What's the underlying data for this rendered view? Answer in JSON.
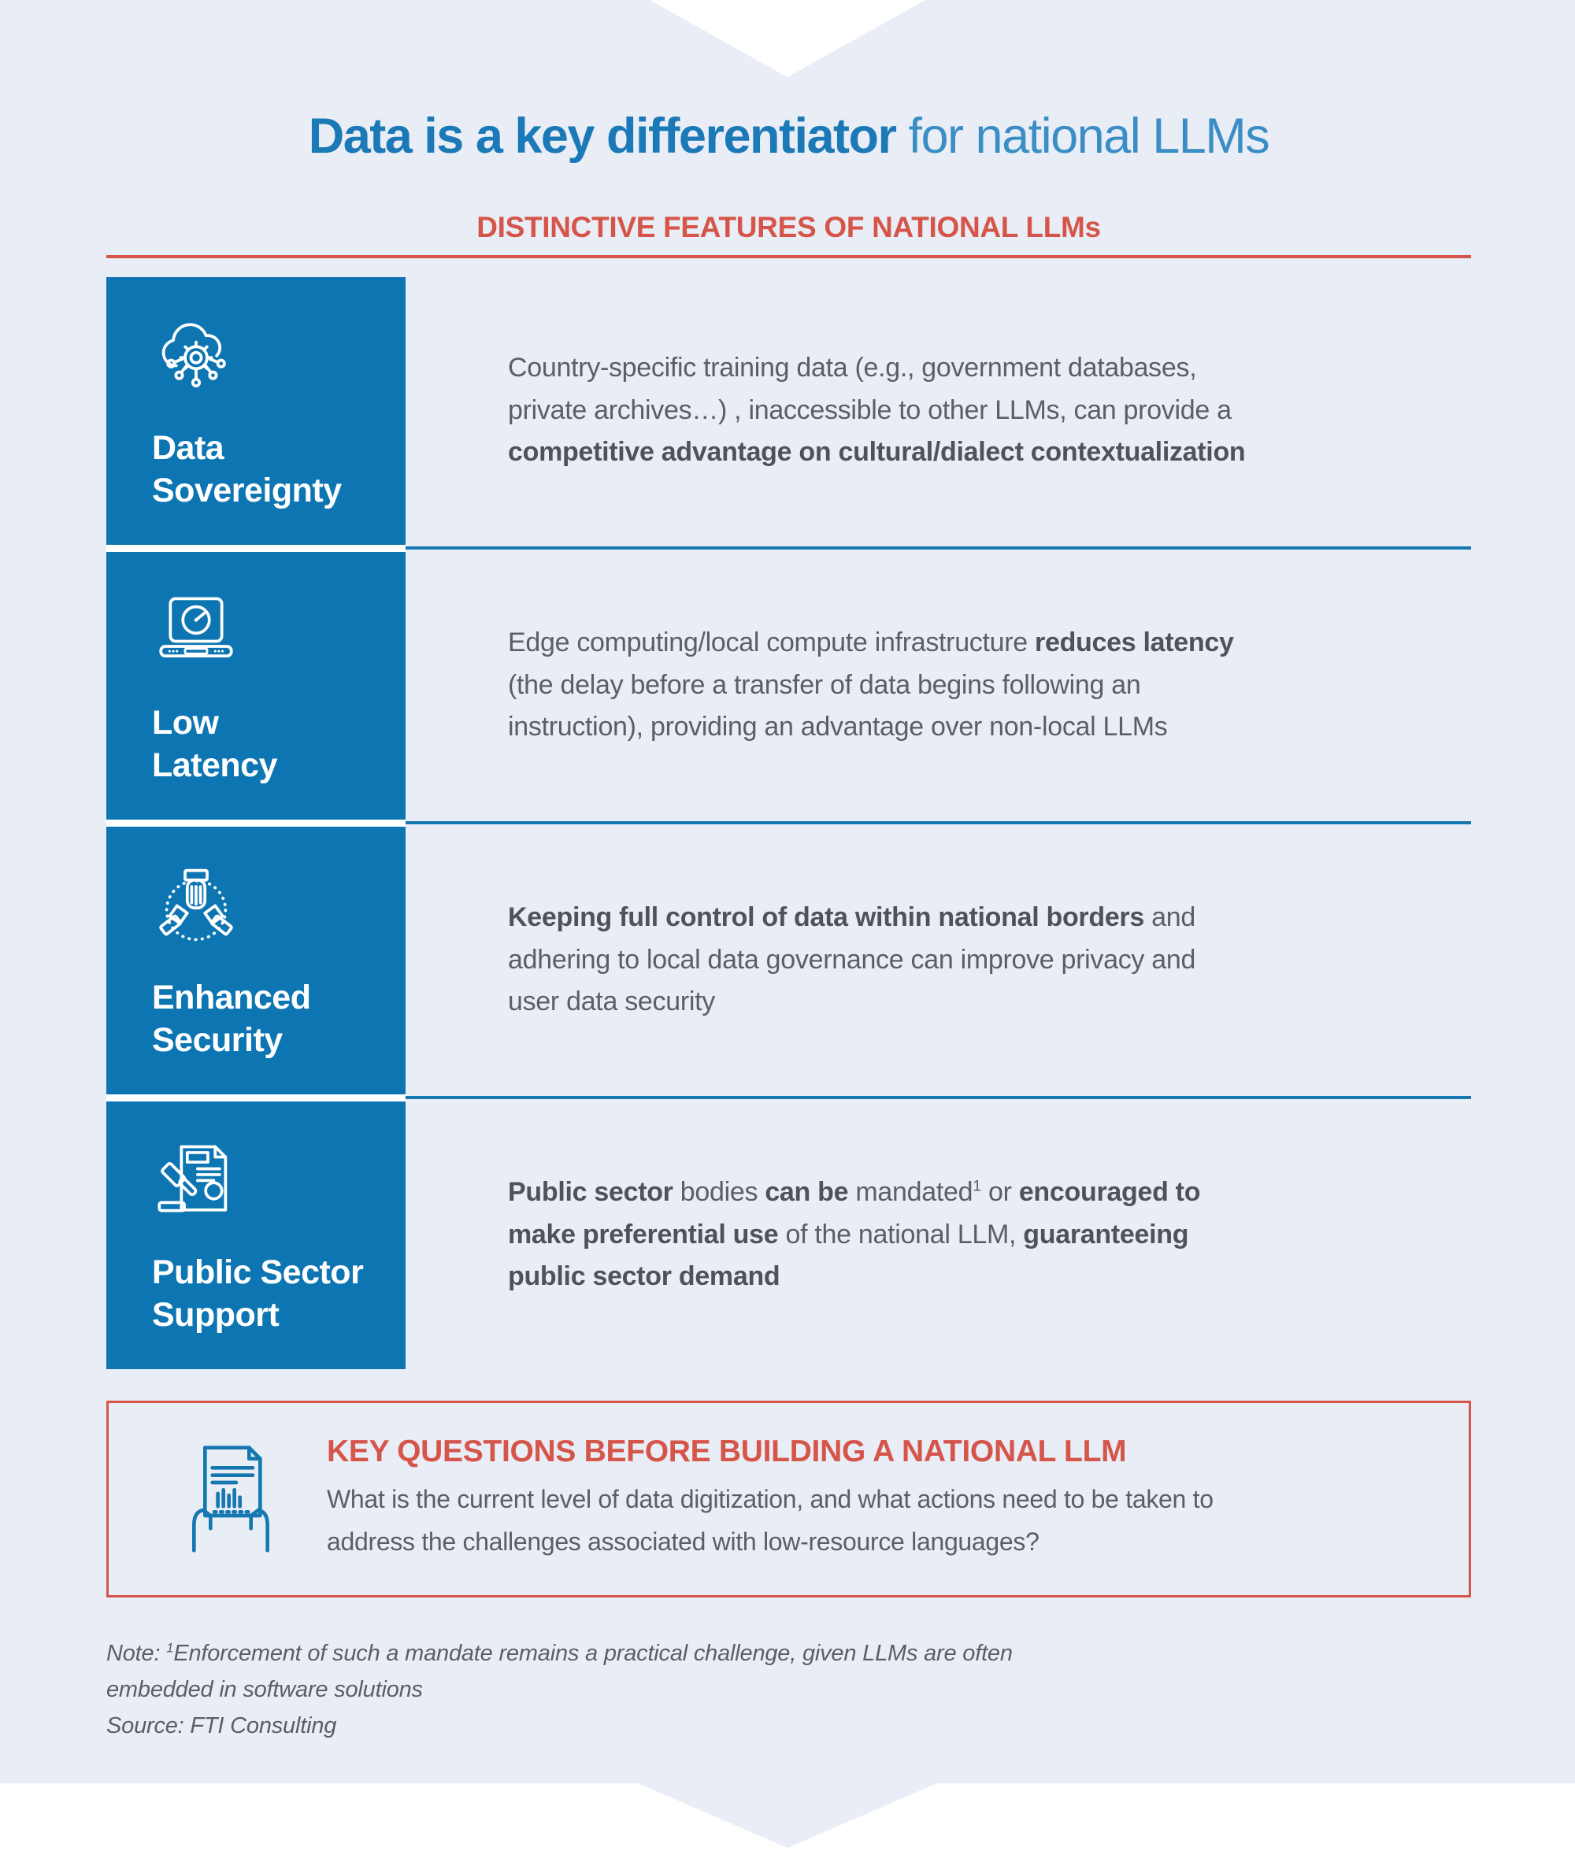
{
  "page": {
    "title": {
      "bold": "Data is a key differentiator",
      "light": " for national LLMs"
    },
    "subtitle": "DISTINCTIVE FEATURES OF NATIONAL LLMs",
    "colors": {
      "background": "#e9edf5",
      "accent_blue": "#0d76b2",
      "divider_blue": "#1578b0",
      "accent_red": "#d6554a",
      "body_gray": "#5a5f64"
    }
  },
  "features": [
    {
      "icon": "cloud-network-icon",
      "label_lines": [
        "Data",
        "Sovereignty"
      ],
      "desc": [
        {
          "t": "Country-specific training data (e.g., government databases,"
        },
        {
          "br": true
        },
        {
          "t": "private archives…) , inaccessible to other LLMs, can provide a"
        },
        {
          "br": true
        },
        {
          "t": "competitive advantage on cultural/dialect contextualization",
          "b": true
        }
      ]
    },
    {
      "icon": "laptop-speedometer-icon",
      "label_lines": [
        "Low",
        "Latency"
      ],
      "desc": [
        {
          "t": "Edge computing/local compute infrastructure "
        },
        {
          "t": "reduces latency",
          "b": true
        },
        {
          "br": true
        },
        {
          "t": "(the delay before a transfer of data begins following an"
        },
        {
          "br": true
        },
        {
          "t": "instruction), providing an advantage over non-local LLMs"
        }
      ]
    },
    {
      "icon": "handshake-icon",
      "label_lines": [
        "Enhanced",
        "Security"
      ],
      "desc": [
        {
          "t": "Keeping full control of data within national borders",
          "b": true
        },
        {
          "t": " and"
        },
        {
          "br": true
        },
        {
          "t": "adhering to local data governance can improve privacy and"
        },
        {
          "br": true
        },
        {
          "t": "user data security"
        }
      ]
    },
    {
      "icon": "gavel-document-icon",
      "label_lines": [
        "Public Sector",
        "Support"
      ],
      "desc": [
        {
          "t": "Public sector",
          "b": true
        },
        {
          "t": " bodies "
        },
        {
          "t": "can be",
          "b": true
        },
        {
          "t": " mandated"
        },
        {
          "t": "1",
          "sup": true
        },
        {
          "t": " or "
        },
        {
          "t": "encouraged to",
          "b": true
        },
        {
          "br": true
        },
        {
          "t": "make preferential use",
          "b": true
        },
        {
          "t": " of the national LLM, "
        },
        {
          "t": "guaranteeing",
          "b": true
        },
        {
          "br": true
        },
        {
          "t": "public sector demand",
          "b": true
        }
      ]
    }
  ],
  "key_questions": {
    "icon": "document-hands-icon",
    "title": "KEY QUESTIONS BEFORE BUILDING A NATIONAL LLM",
    "body": [
      {
        "t": "What is the current level of data digitization, and what actions need to be taken to"
      },
      {
        "br": true
      },
      {
        "t": "address the challenges associated with low-resource languages?"
      }
    ]
  },
  "footnote": {
    "note": [
      {
        "t": "Note: "
      },
      {
        "t": "1",
        "sup": true
      },
      {
        "t": "Enforcement of such a mandate remains a practical challenge, given LLMs are often"
      },
      {
        "br": true
      },
      {
        "t": "embedded in software solutions"
      }
    ],
    "source": "Source: FTI Consulting"
  }
}
